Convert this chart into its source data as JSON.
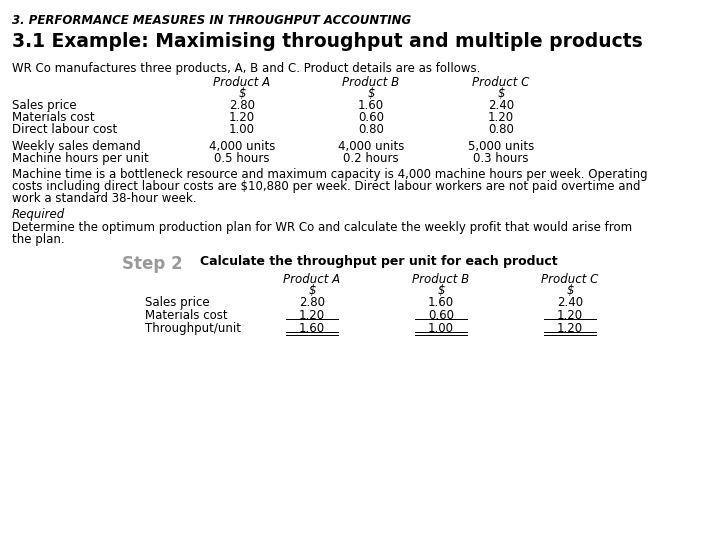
{
  "title_top": "3. PERFORMANCE MEASURES IN THROUGHPUT ACCOUNTING",
  "heading": "3.1 Example: Maximising throughput and multiple products",
  "intro_text": "WR Co manufactures three products, A, B and C. Product details are as follows.",
  "table1_headers": [
    "Product A",
    "Product B",
    "Product C"
  ],
  "table1_dollar": [
    "$",
    "$",
    "$"
  ],
  "table1_rows": [
    [
      "Sales price",
      "2.80",
      "1.60",
      "2.40"
    ],
    [
      "Materials cost",
      "1.20",
      "0.60",
      "1.20"
    ],
    [
      "Direct labour cost",
      "1.00",
      "0.80",
      "0.80"
    ]
  ],
  "table2_rows": [
    [
      "Weekly sales demand",
      "4,000 units",
      "4,000 units",
      "5,000 units"
    ],
    [
      "Machine hours per unit",
      "0.5 hours",
      "0.2 hours",
      "0.3 hours"
    ]
  ],
  "body_text_lines": [
    "Machine time is a bottleneck resource and maximum capacity is 4,000 machine hours per week. Operating",
    "costs including direct labour costs are $10,880 per week. Direct labour workers are not paid overtime and",
    "work a standard 38-hour week."
  ],
  "required_label": "Required",
  "required_text_lines": [
    "Determine the optimum production plan for WR Co and calculate the weekly profit that would arise from",
    "the plan."
  ],
  "step2_label": "Step 2",
  "step2_desc": "Calculate the throughput per unit for each product",
  "table3_headers": [
    "Product A",
    "Product B",
    "Product C"
  ],
  "table3_dollar": [
    "$",
    "$",
    "$"
  ],
  "table3_rows": [
    [
      "Sales price",
      "2.80",
      "1.60",
      "2.40"
    ],
    [
      "Materials cost",
      "1.20",
      "0.60",
      "1.20"
    ],
    [
      "Throughput/unit",
      "1.60",
      "1.00",
      "1.20"
    ]
  ],
  "bg_color": "#ffffff"
}
